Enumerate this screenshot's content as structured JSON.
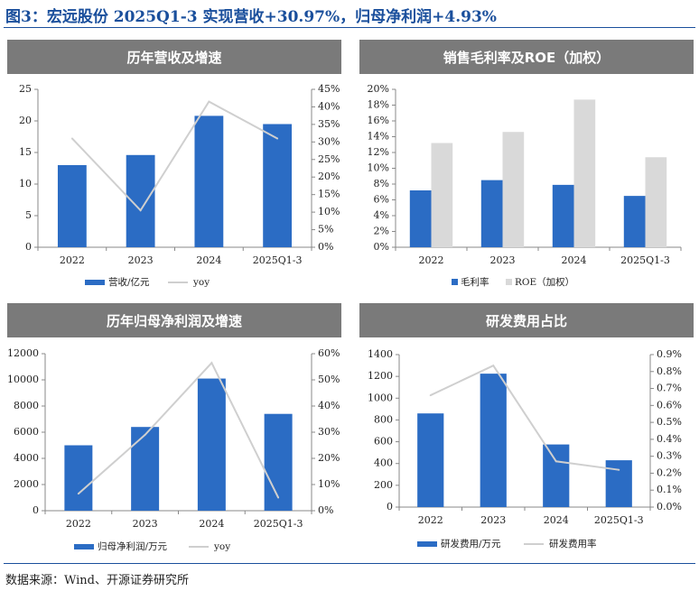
{
  "figure": {
    "title": "图3：宏远股份 2025Q1-3 实现营收+30.97%，归母净利润+4.93%",
    "source": "数据来源：Wind、开源证券研究所"
  },
  "colors": {
    "bar_blue": "#2b6cc4",
    "bar_gray": "#d9d9d9",
    "line_gray": "#cfcfcf",
    "banner": "#7a7a7a",
    "title_blue": "#1a4f9c"
  },
  "chart_data": [
    {
      "id": "revenue",
      "type": "bar",
      "title": "历年营收及增速",
      "categories": [
        "2022",
        "2023",
        "2024",
        "2025Q1-3"
      ],
      "series": [
        {
          "name": "营收/亿元",
          "type": "bar",
          "axis": "left",
          "values": [
            13.0,
            14.6,
            20.8,
            19.5
          ]
        },
        {
          "name": "yoy",
          "type": "line",
          "axis": "right",
          "values": [
            31,
            10.5,
            41.5,
            31
          ]
        }
      ],
      "left_axis": {
        "ylim": [
          0,
          25
        ],
        "ticks": [
          "0",
          "5",
          "10",
          "15",
          "20",
          "25"
        ]
      },
      "right_axis": {
        "ylim": [
          0,
          45
        ],
        "ticks": [
          "0%",
          "5%",
          "10%",
          "15%",
          "20%",
          "25%",
          "30%",
          "35%",
          "40%",
          "45%"
        ]
      },
      "legend": "bottom"
    },
    {
      "id": "margin",
      "type": "bar",
      "title": "销售毛利率及ROE（加权）",
      "categories": [
        "2022",
        "2023",
        "2024",
        "2025Q1-3"
      ],
      "series": [
        {
          "name": "毛利率",
          "type": "bar",
          "axis": "left",
          "values": [
            7.2,
            8.5,
            7.9,
            6.5
          ]
        },
        {
          "name": "ROE（加权）",
          "type": "bar",
          "axis": "left",
          "values": [
            13.2,
            14.6,
            18.7,
            11.4
          ]
        }
      ],
      "left_axis": {
        "ylim": [
          0,
          20
        ],
        "ticks": [
          "0%",
          "2%",
          "4%",
          "6%",
          "8%",
          "10%",
          "12%",
          "14%",
          "16%",
          "18%",
          "20%"
        ]
      },
      "legend": "bottom"
    },
    {
      "id": "profit",
      "type": "bar",
      "title": "历年归母净利润及增速",
      "categories": [
        "2022",
        "2023",
        "2024",
        "2025Q1-3"
      ],
      "series": [
        {
          "name": "归母净利润/万元",
          "type": "bar",
          "axis": "left",
          "values": [
            5000,
            6400,
            10100,
            7400
          ]
        },
        {
          "name": "yoy",
          "type": "line",
          "axis": "right",
          "values": [
            6.5,
            29,
            56.5,
            5
          ]
        }
      ],
      "left_axis": {
        "ylim": [
          0,
          12000
        ],
        "ticks": [
          "0",
          "2000",
          "4000",
          "6000",
          "8000",
          "10000",
          "12000"
        ]
      },
      "right_axis": {
        "ylim": [
          0,
          60
        ],
        "ticks": [
          "0%",
          "10%",
          "20%",
          "30%",
          "40%",
          "50%",
          "60%"
        ]
      },
      "legend": "bottom"
    },
    {
      "id": "rd",
      "type": "bar",
      "title": "研发费用占比",
      "categories": [
        "2022",
        "2023",
        "2024",
        "2025Q1-3"
      ],
      "series": [
        {
          "name": "研发费用/万元",
          "type": "bar",
          "axis": "left",
          "values": [
            860,
            1225,
            575,
            430
          ]
        },
        {
          "name": "研发费用率",
          "type": "line",
          "axis": "right",
          "values": [
            0.66,
            0.835,
            0.27,
            0.22
          ]
        }
      ],
      "left_axis": {
        "ylim": [
          0,
          1400
        ],
        "ticks": [
          "0",
          "200",
          "400",
          "600",
          "800",
          "1000",
          "1200",
          "1400"
        ]
      },
      "right_axis": {
        "ylim": [
          0,
          0.9
        ],
        "ticks": [
          "0.0%",
          "0.1%",
          "0.2%",
          "0.3%",
          "0.4%",
          "0.5%",
          "0.6%",
          "0.7%",
          "0.8%",
          "0.9%"
        ]
      },
      "legend": "bottom"
    }
  ]
}
